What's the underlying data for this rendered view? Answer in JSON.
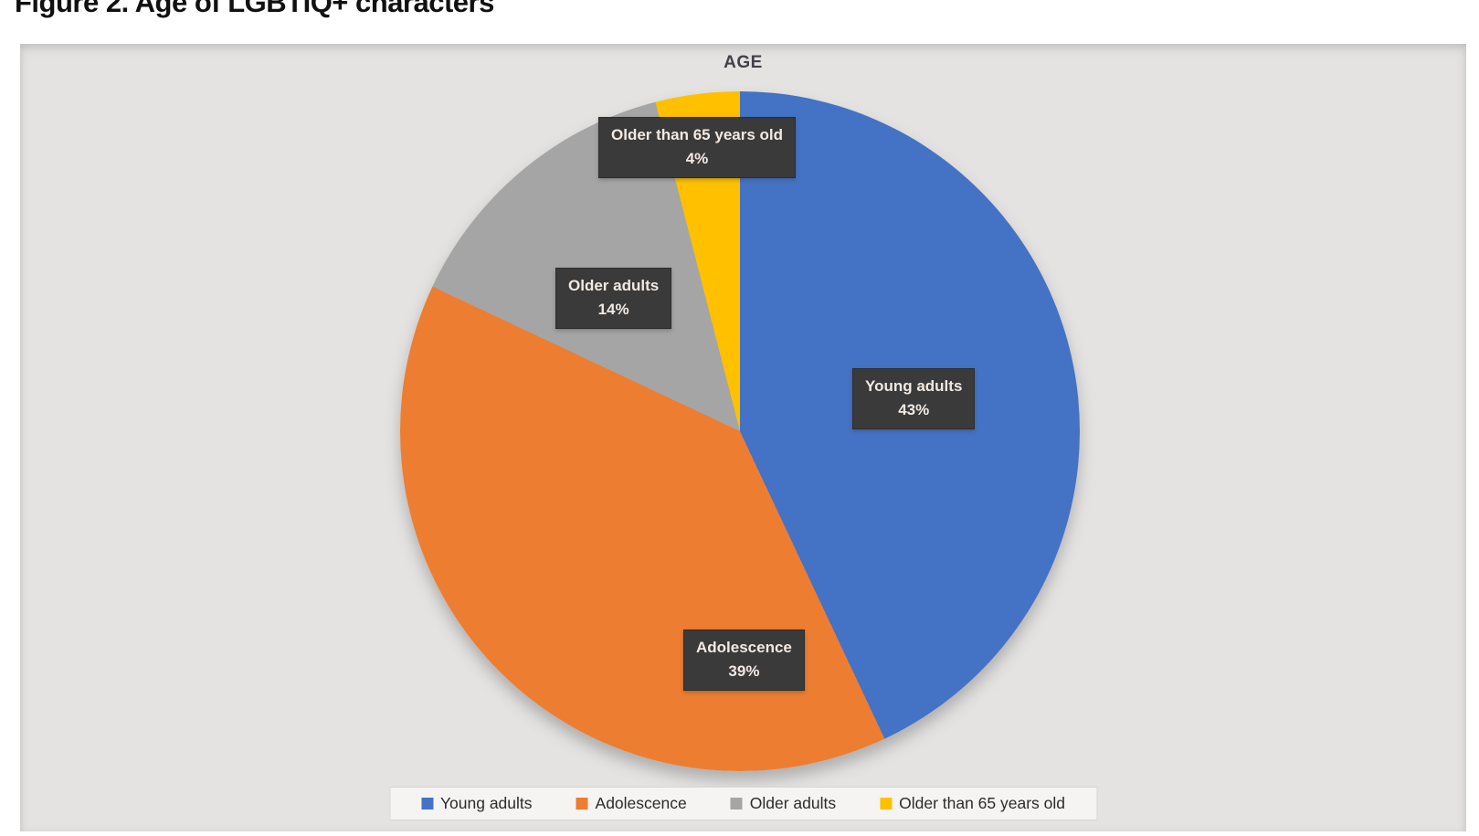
{
  "page": {
    "figure_caption": "Figure 2. Age of LGBTIQ+ characters"
  },
  "chart_data": {
    "type": "pie",
    "title": "AGE",
    "categories": [
      "Young adults",
      "Adolescence",
      "Older adults",
      "Older than 65 years old"
    ],
    "values": [
      43,
      39,
      14,
      4
    ],
    "value_unit": "percent",
    "start_angle_deg": 0,
    "direction": "clockwise",
    "legend_position": "bottom",
    "slices": [
      {
        "name": "Young adults",
        "value": 43,
        "pct_label": "43%",
        "color": "#4472C4"
      },
      {
        "name": "Adolescence",
        "value": 39,
        "pct_label": "39%",
        "color": "#ED7D31"
      },
      {
        "name": "Older adults",
        "value": 14,
        "pct_label": "14%",
        "color": "#A5A5A5"
      },
      {
        "name": "Older than 65 years old",
        "value": 4,
        "pct_label": "4%",
        "color": "#FFC000"
      }
    ],
    "label_text_color": "#f2e9e3",
    "label_box_color": "#3a3a3a"
  }
}
